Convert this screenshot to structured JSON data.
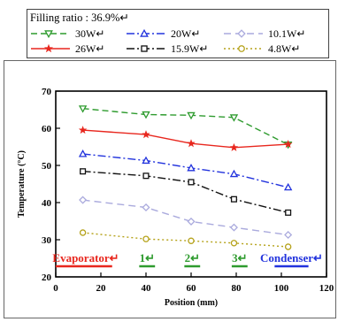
{
  "chart_data": {
    "type": "line",
    "subtitle": "Filling ratio : 36.9%↵",
    "xlabel": "Position (mm)",
    "ylabel": "Temperature (°C)",
    "xlim": [
      0,
      120
    ],
    "ylim": [
      20,
      70
    ],
    "x_ticks": [
      "0",
      "20",
      "40",
      "60",
      "80",
      "100",
      "120"
    ],
    "y_ticks": [
      "20",
      "30",
      "40",
      "50",
      "60",
      "70"
    ],
    "x": [
      12,
      40,
      60,
      79,
      103
    ],
    "series": [
      {
        "name": "30W↵",
        "color": "#2e9b2e",
        "dash": "7,4",
        "marker": "triangle-down-open",
        "values": [
          65.3,
          63.7,
          63.5,
          62.9,
          55.6
        ]
      },
      {
        "name": "20W↵",
        "color": "#2233dd",
        "dash": "9,3,2,3",
        "marker": "triangle-open",
        "values": [
          53.1,
          51.3,
          49.3,
          47.7,
          44.1
        ]
      },
      {
        "name": "10.1W↵",
        "color": "#aaaadd",
        "dash": "8,5",
        "marker": "diamond-open",
        "values": [
          40.7,
          38.7,
          34.9,
          33.3,
          31.3
        ]
      },
      {
        "name": "26W↵",
        "color": "#e8271e",
        "dash": "",
        "marker": "star",
        "values": [
          59.5,
          58.3,
          55.9,
          54.8,
          55.7
        ]
      },
      {
        "name": "15.9W↵",
        "color": "#111111",
        "dash": "9,3,2,3",
        "marker": "square-open",
        "values": [
          48.4,
          47.2,
          45.5,
          40.9,
          37.3
        ]
      },
      {
        "name": "4.8W↵",
        "color": "#b5a21a",
        "dash": "2,3",
        "marker": "circle-open",
        "values": [
          31.9,
          30.2,
          29.7,
          29.1,
          28.1
        ]
      }
    ],
    "regions": [
      {
        "label": "Evaporator↵",
        "color": "#e8271e",
        "from": 0,
        "to": 25
      },
      {
        "label": "1↵",
        "color": "#2e9b2e",
        "from": 37,
        "to": 44
      },
      {
        "label": "2↵",
        "color": "#2e9b2e",
        "from": 57,
        "to": 64
      },
      {
        "label": "3↵",
        "color": "#2e9b2e",
        "from": 78,
        "to": 85
      },
      {
        "label": "Condenser↵",
        "color": "#2233dd",
        "from": 97,
        "to": 112
      }
    ],
    "grid": false,
    "legend_position": "top"
  }
}
